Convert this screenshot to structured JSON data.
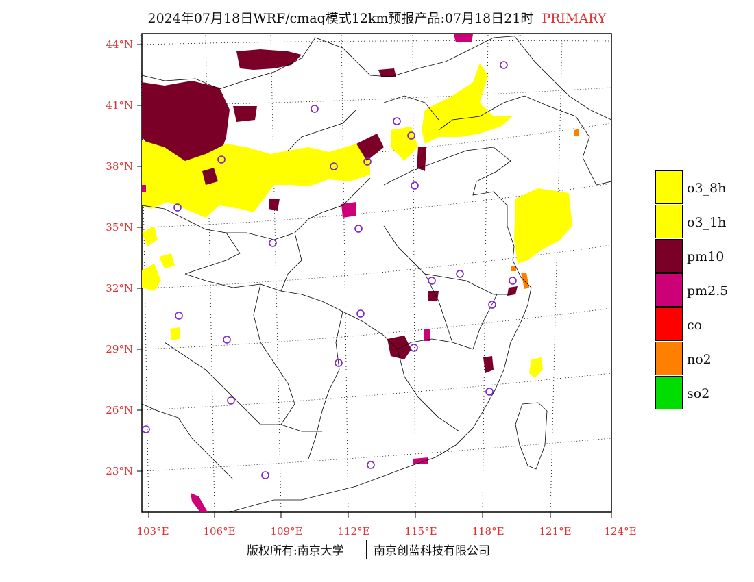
{
  "title": {
    "main": "2024年07月18日WRF/cmaq模式12km预报产品:07月18日21时",
    "tag": "PRIMARY"
  },
  "axes": {
    "lat_labels": [
      "44°N",
      "41°N",
      "38°N",
      "35°N",
      "32°N",
      "29°N",
      "26°N",
      "23°N"
    ],
    "lon_labels": [
      "103°E",
      "106°E",
      "109°E",
      "112°E",
      "115°E",
      "118°E",
      "121°E",
      "124°E"
    ]
  },
  "legend": [
    {
      "label": "o3_8h",
      "color": "#ffff00"
    },
    {
      "label": "o3_1h",
      "color": "#ffff00"
    },
    {
      "label": "pm10",
      "color": "#7a0028"
    },
    {
      "label": "pm2.5",
      "color": "#cc0077"
    },
    {
      "label": "co",
      "color": "#ff0000"
    },
    {
      "label": "no2",
      "color": "#ff8000"
    },
    {
      "label": "so2",
      "color": "#00dd00"
    }
  ],
  "footer": {
    "left": "版权所有:南京大学",
    "right": "南京创蓝科技有限公司"
  }
}
